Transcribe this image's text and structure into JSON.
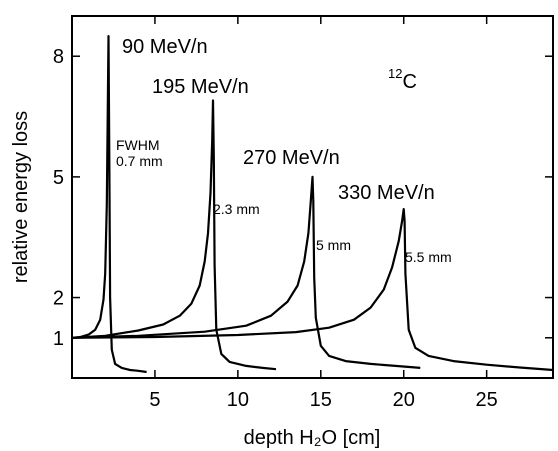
{
  "chart_data": {
    "type": "line",
    "title": "",
    "xlabel": "depth H₂O [cm]",
    "ylabel": "relative energy loss",
    "species": {
      "base": "C",
      "superscript": "12"
    },
    "xlim": [
      0,
      29
    ],
    "ylim": [
      0,
      9
    ],
    "x_ticks": [
      5,
      10,
      15,
      20,
      25
    ],
    "y_ticks": [
      1,
      2,
      5,
      8
    ],
    "x_tick_labels": [
      "5",
      "10",
      "15",
      "20",
      "25"
    ],
    "y_tick_labels": [
      "1",
      "2",
      "5",
      "8"
    ],
    "series": [
      {
        "name": "90 MeV/n",
        "fwhm": "0.7 mm",
        "peak": 2.2,
        "x": [
          0,
          0.5,
          1.0,
          1.4,
          1.7,
          1.9,
          2.0,
          2.1,
          2.15,
          2.2,
          2.25,
          2.3,
          2.4,
          2.6,
          3.0,
          3.5,
          4.0,
          4.5
        ],
        "y": [
          1.0,
          1.02,
          1.08,
          1.2,
          1.45,
          1.95,
          2.6,
          4.3,
          6.5,
          8.5,
          5.5,
          2.0,
          0.7,
          0.35,
          0.25,
          0.2,
          0.18,
          0.15
        ]
      },
      {
        "name": "195 MeV/n",
        "fwhm": "2.3 mm",
        "peak": 8.5,
        "x": [
          0,
          2,
          4,
          5.5,
          6.5,
          7.2,
          7.7,
          8.0,
          8.2,
          8.35,
          8.45,
          8.5,
          8.55,
          8.6,
          8.7,
          9.0,
          9.5,
          10.5,
          11.5,
          12.3
        ],
        "y": [
          1.0,
          1.05,
          1.18,
          1.33,
          1.55,
          1.85,
          2.3,
          2.9,
          3.6,
          4.6,
          5.9,
          6.9,
          5.5,
          2.8,
          1.2,
          0.6,
          0.4,
          0.3,
          0.25,
          0.22
        ]
      },
      {
        "name": "270 MeV/n",
        "fwhm": "5 mm",
        "peak": 14.5,
        "x": [
          0,
          4,
          8,
          10.5,
          12,
          13,
          13.6,
          14.0,
          14.25,
          14.4,
          14.5,
          14.55,
          14.6,
          14.7,
          15.0,
          15.5,
          16.5,
          18,
          19.5,
          21
        ],
        "y": [
          1.0,
          1.05,
          1.15,
          1.3,
          1.55,
          1.9,
          2.3,
          2.9,
          3.6,
          4.4,
          5.0,
          4.4,
          2.5,
          1.5,
          0.8,
          0.55,
          0.42,
          0.35,
          0.3,
          0.25
        ]
      },
      {
        "name": "330 MeV/n",
        "fwhm": "5.5 mm",
        "peak": 20.0,
        "x": [
          0,
          5,
          10,
          13.5,
          15.5,
          17,
          18,
          18.8,
          19.3,
          19.7,
          19.9,
          20.0,
          20.05,
          20.1,
          20.3,
          20.7,
          21.5,
          23,
          25,
          27,
          29
        ],
        "y": [
          1.0,
          1.02,
          1.07,
          1.14,
          1.25,
          1.45,
          1.75,
          2.2,
          2.75,
          3.4,
          3.9,
          4.2,
          3.9,
          2.6,
          1.2,
          0.75,
          0.55,
          0.42,
          0.33,
          0.26,
          0.2
        ]
      }
    ]
  }
}
